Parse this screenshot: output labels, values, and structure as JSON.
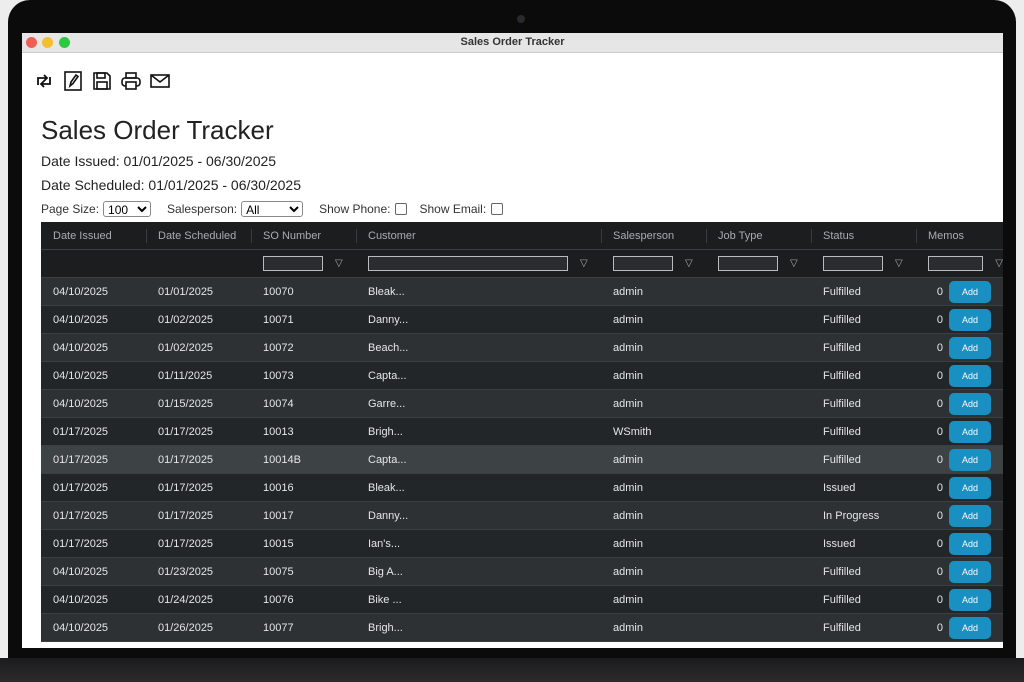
{
  "window": {
    "title": "Sales Order Tracker"
  },
  "toolbar": [
    "refresh-icon",
    "edit-icon",
    "save-icon",
    "print-icon",
    "mail-icon"
  ],
  "page": {
    "title": "Sales Order Tracker",
    "date_issued": "Date Issued: 01/01/2025 - 06/30/2025",
    "date_scheduled": "Date Scheduled: 01/01/2025 - 06/30/2025"
  },
  "filters": {
    "page_size_label": "Page Size:",
    "page_size": "100",
    "salesperson_label": "Salesperson:",
    "salesperson": "All",
    "show_phone": "Show Phone:",
    "show_email": "Show Email:"
  },
  "columns": [
    "Date Issued",
    "Date Scheduled",
    "SO Number",
    "Customer",
    "Salesperson",
    "Job Type",
    "Status",
    "Memos"
  ],
  "add_label": "Add",
  "accent": "#1a8fc2",
  "rows": [
    [
      "04/10/2025",
      "01/01/2025",
      "10070",
      "Bleak...",
      "admin",
      "",
      "Fulfilled",
      "0"
    ],
    [
      "04/10/2025",
      "01/02/2025",
      "10071",
      "Danny...",
      "admin",
      "",
      "Fulfilled",
      "0"
    ],
    [
      "04/10/2025",
      "01/02/2025",
      "10072",
      "Beach...",
      "admin",
      "",
      "Fulfilled",
      "0"
    ],
    [
      "04/10/2025",
      "01/11/2025",
      "10073",
      "Capta...",
      "admin",
      "",
      "Fulfilled",
      "0"
    ],
    [
      "04/10/2025",
      "01/15/2025",
      "10074",
      "Garre...",
      "admin",
      "",
      "Fulfilled",
      "0"
    ],
    [
      "01/17/2025",
      "01/17/2025",
      "10013",
      "Brigh...",
      "WSmith",
      "",
      "Fulfilled",
      "0"
    ],
    [
      "01/17/2025",
      "01/17/2025",
      "10014B",
      "Capta...",
      "admin",
      "",
      "Fulfilled",
      "0"
    ],
    [
      "01/17/2025",
      "01/17/2025",
      "10016",
      "Bleak...",
      "admin",
      "",
      "Issued",
      "0"
    ],
    [
      "01/17/2025",
      "01/17/2025",
      "10017",
      "Danny...",
      "admin",
      "",
      "In Progress",
      "0"
    ],
    [
      "01/17/2025",
      "01/17/2025",
      "10015",
      "Ian's...",
      "admin",
      "",
      "Issued",
      "0"
    ],
    [
      "04/10/2025",
      "01/23/2025",
      "10075",
      "Big A...",
      "admin",
      "",
      "Fulfilled",
      "0"
    ],
    [
      "04/10/2025",
      "01/24/2025",
      "10076",
      "Bike ...",
      "admin",
      "",
      "Fulfilled",
      "0"
    ],
    [
      "04/10/2025",
      "01/26/2025",
      "10077",
      "Brigh...",
      "admin",
      "",
      "Fulfilled",
      "0"
    ]
  ]
}
